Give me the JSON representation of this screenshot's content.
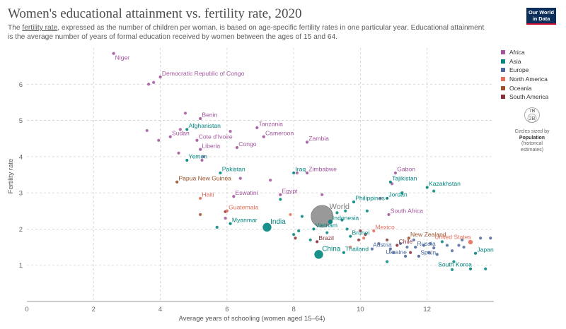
{
  "header": {
    "title": "Women's educational attainment vs. fertility rate, 2020",
    "subtitle_link": "fertility rate",
    "subtitle_pre": "The ",
    "subtitle_post": ", expressed as the number of children per woman, is based on age-specific fertility rates in one particular year. Educational attainment is the average number of years of formal education received by women between the ages of 15 and 64.",
    "logo_line1": "Our World",
    "logo_line2": "in Data"
  },
  "colors": {
    "Africa": "#a2559c",
    "Asia": "#00847e",
    "Europe": "#4c6a9c",
    "North America": "#e56e5a",
    "Oceania": "#9a5129",
    "South America": "#883039",
    "World": "#7f7f7f"
  },
  "legend": [
    "Africa",
    "Asia",
    "Europe",
    "North America",
    "Oceania",
    "South America"
  ],
  "size_legend": {
    "big": "7B",
    "small": "2B",
    "caption1": "Circles sized by",
    "caption2": "Population",
    "caption3": "(historical estimates)"
  },
  "chart_data": {
    "type": "scatter",
    "title": "Women's educational attainment vs. fertility rate, 2020",
    "xlabel": "Average years of schooling (women aged 15–64)",
    "ylabel": "Fertility rate",
    "xlim": [
      0,
      14
    ],
    "ylim": [
      0,
      7
    ],
    "xticks": [
      0,
      2,
      4,
      6,
      8,
      10,
      12
    ],
    "yticks": [
      1,
      2,
      3,
      4,
      5,
      6
    ],
    "grid": true,
    "labeled_points": [
      {
        "name": "Niger",
        "x": 2.6,
        "y": 6.85,
        "region": "Africa",
        "label": "right-below"
      },
      {
        "name": "Democratic Republic of Congo",
        "x": 4.0,
        "y": 6.2,
        "region": "Africa",
        "label": "right-above"
      },
      {
        "name": "Benin",
        "x": 5.2,
        "y": 5.05,
        "region": "Africa",
        "label": "right-above"
      },
      {
        "name": "Afghanistan",
        "x": 4.8,
        "y": 4.75,
        "region": "Asia",
        "label": "right-above"
      },
      {
        "name": "Tanzania",
        "x": 6.9,
        "y": 4.8,
        "region": "Africa",
        "label": "right-above"
      },
      {
        "name": "Sudan",
        "x": 4.3,
        "y": 4.55,
        "region": "Africa",
        "label": "right-above"
      },
      {
        "name": "Cameroon",
        "x": 7.1,
        "y": 4.55,
        "region": "Africa",
        "label": "right-above"
      },
      {
        "name": "Cote d'Ivoire",
        "x": 5.1,
        "y": 4.45,
        "region": "Africa",
        "label": "right-above"
      },
      {
        "name": "Zambia",
        "x": 8.4,
        "y": 4.4,
        "region": "Africa",
        "label": "right-above"
      },
      {
        "name": "Congo",
        "x": 6.3,
        "y": 4.25,
        "region": "Africa",
        "label": "right-above"
      },
      {
        "name": "Liberia",
        "x": 5.2,
        "y": 4.2,
        "region": "Africa",
        "label": "right-above"
      },
      {
        "name": "Yemen",
        "x": 4.8,
        "y": 3.9,
        "region": "Asia",
        "label": "right-above"
      },
      {
        "name": "Pakistan",
        "x": 5.8,
        "y": 3.55,
        "region": "Asia",
        "label": "right-above"
      },
      {
        "name": "Iraq",
        "x": 8.0,
        "y": 3.55,
        "region": "Asia",
        "label": "right-above"
      },
      {
        "name": "Zimbabwe",
        "x": 8.4,
        "y": 3.55,
        "region": "Africa",
        "label": "right-above"
      },
      {
        "name": "Gabon",
        "x": 11.05,
        "y": 3.55,
        "region": "Africa",
        "label": "right-above"
      },
      {
        "name": "Papua New Guinea",
        "x": 4.5,
        "y": 3.3,
        "region": "Oceania",
        "label": "right-above"
      },
      {
        "name": "Tajikistan",
        "x": 10.9,
        "y": 3.3,
        "region": "Asia",
        "label": "right-above"
      },
      {
        "name": "Kazakhstan",
        "x": 12.0,
        "y": 3.15,
        "region": "Asia",
        "label": "right-above"
      },
      {
        "name": "Egypt",
        "x": 7.6,
        "y": 2.95,
        "region": "Africa",
        "label": "right-above"
      },
      {
        "name": "Eswatini",
        "x": 6.2,
        "y": 2.9,
        "region": "Africa",
        "label": "right-above"
      },
      {
        "name": "Haiti",
        "x": 5.2,
        "y": 2.85,
        "region": "North America",
        "label": "right-above"
      },
      {
        "name": "Jordan",
        "x": 10.8,
        "y": 2.85,
        "region": "Asia",
        "label": "right-above"
      },
      {
        "name": "Philippines",
        "x": 9.8,
        "y": 2.75,
        "region": "Asia",
        "label": "right-above"
      },
      {
        "name": "World",
        "x": 8.85,
        "y": 2.35,
        "region": "World",
        "label": "right-above",
        "size": "big"
      },
      {
        "name": "South Africa",
        "x": 10.85,
        "y": 2.4,
        "region": "Africa",
        "label": "right-above"
      },
      {
        "name": "Guatemala",
        "x": 6.0,
        "y": 2.5,
        "region": "North America",
        "label": "right-above"
      },
      {
        "name": "Indonesia",
        "x": 9.1,
        "y": 2.2,
        "region": "Asia",
        "label": "right-above",
        "size": "mid"
      },
      {
        "name": "Myanmar",
        "x": 6.1,
        "y": 2.15,
        "region": "Asia",
        "label": "right-above"
      },
      {
        "name": "India",
        "x": 7.2,
        "y": 2.05,
        "region": "Asia",
        "label": "right-above",
        "size": "large"
      },
      {
        "name": "Vietnam",
        "x": 8.6,
        "y": 2.0,
        "region": "Asia",
        "label": "right-above"
      },
      {
        "name": "Mexico",
        "x": 10.4,
        "y": 1.95,
        "region": "North America",
        "label": "right-above"
      },
      {
        "name": "Brunei",
        "x": 9.7,
        "y": 1.8,
        "region": "Asia",
        "label": "right-above"
      },
      {
        "name": "New Zealand",
        "x": 11.45,
        "y": 1.75,
        "region": "Oceania",
        "label": "right-above"
      },
      {
        "name": "Brazil",
        "x": 8.7,
        "y": 1.65,
        "region": "South America",
        "label": "right-above"
      },
      {
        "name": "United States",
        "x": 13.3,
        "y": 1.64,
        "region": "North America",
        "label": "left-above",
        "size": "mid"
      },
      {
        "name": "Chile",
        "x": 11.1,
        "y": 1.55,
        "region": "South America",
        "label": "right-above"
      },
      {
        "name": "Russia",
        "x": 11.65,
        "y": 1.5,
        "region": "Europe",
        "label": "right-above"
      },
      {
        "name": "Austria",
        "x": 10.9,
        "y": 1.45,
        "region": "Europe",
        "label": "left-above"
      },
      {
        "name": "Thailand",
        "x": 9.5,
        "y": 1.35,
        "region": "Asia",
        "label": "right-above"
      },
      {
        "name": "China",
        "x": 8.75,
        "y": 1.3,
        "region": "Asia",
        "label": "right-above",
        "size": "large"
      },
      {
        "name": "Japan",
        "x": 13.45,
        "y": 1.33,
        "region": "Asia",
        "label": "right-above"
      },
      {
        "name": "Ukraine",
        "x": 11.35,
        "y": 1.25,
        "region": "Europe",
        "label": "left-above"
      },
      {
        "name": "Spain",
        "x": 11.75,
        "y": 1.25,
        "region": "Europe",
        "label": "right-above"
      },
      {
        "name": "South Korea",
        "x": 13.3,
        "y": 0.9,
        "region": "Asia",
        "label": "left-above"
      }
    ],
    "unlabeled_points": [
      {
        "x": 3.65,
        "y": 6.0,
        "region": "Africa"
      },
      {
        "x": 3.8,
        "y": 6.05,
        "region": "Africa"
      },
      {
        "x": 4.75,
        "y": 5.2,
        "region": "Africa"
      },
      {
        "x": 3.6,
        "y": 4.72,
        "region": "Africa"
      },
      {
        "x": 4.6,
        "y": 4.75,
        "region": "Africa"
      },
      {
        "x": 6.1,
        "y": 4.7,
        "region": "Africa"
      },
      {
        "x": 3.95,
        "y": 4.45,
        "region": "Africa"
      },
      {
        "x": 4.55,
        "y": 4.1,
        "region": "Africa"
      },
      {
        "x": 5.3,
        "y": 4.0,
        "region": "Africa"
      },
      {
        "x": 5.25,
        "y": 3.9,
        "region": "Africa"
      },
      {
        "x": 6.4,
        "y": 3.4,
        "region": "Africa"
      },
      {
        "x": 7.3,
        "y": 3.35,
        "region": "Africa"
      },
      {
        "x": 8.1,
        "y": 3.55,
        "region": "Africa"
      },
      {
        "x": 8.85,
        "y": 2.95,
        "region": "Africa"
      },
      {
        "x": 10.6,
        "y": 2.85,
        "region": "Africa"
      },
      {
        "x": 10.95,
        "y": 3.25,
        "region": "Africa"
      },
      {
        "x": 11.25,
        "y": 3.0,
        "region": "Asia"
      },
      {
        "x": 12.2,
        "y": 3.05,
        "region": "Asia"
      },
      {
        "x": 7.6,
        "y": 2.82,
        "region": "Asia"
      },
      {
        "x": 10.2,
        "y": 2.5,
        "region": "Asia"
      },
      {
        "x": 5.2,
        "y": 2.4,
        "region": "Oceania"
      },
      {
        "x": 5.95,
        "y": 2.48,
        "region": "South America"
      },
      {
        "x": 7.9,
        "y": 2.4,
        "region": "North America"
      },
      {
        "x": 8.25,
        "y": 2.35,
        "region": "Asia"
      },
      {
        "x": 9.3,
        "y": 2.45,
        "region": "Asia"
      },
      {
        "x": 9.55,
        "y": 2.5,
        "region": "Asia"
      },
      {
        "x": 9.45,
        "y": 2.25,
        "region": "Asia"
      },
      {
        "x": 5.95,
        "y": 2.3,
        "region": "Africa"
      },
      {
        "x": 5.7,
        "y": 2.05,
        "region": "Asia"
      },
      {
        "x": 8.0,
        "y": 1.85,
        "region": "Asia"
      },
      {
        "x": 8.15,
        "y": 1.95,
        "region": "Asia"
      },
      {
        "x": 8.05,
        "y": 1.75,
        "region": "South America"
      },
      {
        "x": 8.5,
        "y": 1.7,
        "region": "Asia"
      },
      {
        "x": 9.0,
        "y": 1.9,
        "region": "Asia"
      },
      {
        "x": 9.6,
        "y": 2.0,
        "region": "Asia"
      },
      {
        "x": 10.0,
        "y": 1.95,
        "region": "South America"
      },
      {
        "x": 10.15,
        "y": 1.85,
        "region": "South America"
      },
      {
        "x": 10.1,
        "y": 1.75,
        "region": "North America"
      },
      {
        "x": 9.95,
        "y": 1.7,
        "region": "South America"
      },
      {
        "x": 9.7,
        "y": 1.5,
        "region": "North America"
      },
      {
        "x": 10.35,
        "y": 1.45,
        "region": "Europe"
      },
      {
        "x": 10.55,
        "y": 1.6,
        "region": "Europe"
      },
      {
        "x": 10.8,
        "y": 1.7,
        "region": "South America"
      },
      {
        "x": 11.0,
        "y": 1.35,
        "region": "Europe"
      },
      {
        "x": 10.8,
        "y": 1.1,
        "region": "Asia"
      },
      {
        "x": 11.2,
        "y": 1.6,
        "region": "Europe"
      },
      {
        "x": 11.4,
        "y": 1.5,
        "region": "Europe"
      },
      {
        "x": 11.5,
        "y": 1.35,
        "region": "South America"
      },
      {
        "x": 11.6,
        "y": 1.7,
        "region": "Europe"
      },
      {
        "x": 11.9,
        "y": 1.55,
        "region": "Europe"
      },
      {
        "x": 12.1,
        "y": 1.6,
        "region": "Europe"
      },
      {
        "x": 12.2,
        "y": 1.48,
        "region": "Europe"
      },
      {
        "x": 12.05,
        "y": 1.35,
        "region": "Europe"
      },
      {
        "x": 12.3,
        "y": 1.3,
        "region": "Europe"
      },
      {
        "x": 12.45,
        "y": 1.65,
        "region": "Asia"
      },
      {
        "x": 12.6,
        "y": 1.55,
        "region": "Europe"
      },
      {
        "x": 12.75,
        "y": 1.4,
        "region": "Europe"
      },
      {
        "x": 12.95,
        "y": 1.55,
        "region": "Europe"
      },
      {
        "x": 13.05,
        "y": 1.7,
        "region": "Europe"
      },
      {
        "x": 13.1,
        "y": 1.5,
        "region": "Europe"
      },
      {
        "x": 13.6,
        "y": 1.75,
        "region": "Europe"
      },
      {
        "x": 13.9,
        "y": 1.75,
        "region": "Europe"
      },
      {
        "x": 12.8,
        "y": 1.1,
        "region": "Asia"
      },
      {
        "x": 12.75,
        "y": 0.88,
        "region": "Asia"
      },
      {
        "x": 13.75,
        "y": 0.9,
        "region": "Asia"
      }
    ]
  }
}
